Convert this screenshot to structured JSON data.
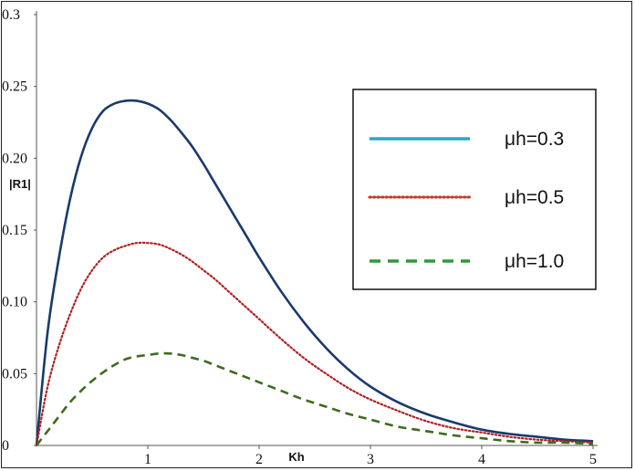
{
  "chart_data": {
    "type": "line",
    "title": "",
    "xlabel": "Kh",
    "ylabel": "|R1|",
    "xlim": [
      0,
      5
    ],
    "ylim": [
      0,
      0.3
    ],
    "x_ticks": [
      1,
      2,
      3,
      4,
      5
    ],
    "y_ticks": [
      0,
      0.05,
      0.1,
      0.15,
      0.2,
      0.25,
      0.3
    ],
    "y_tick_labels": [
      "0",
      "0.05",
      "0.10",
      "0.15",
      "0.20",
      "0.25",
      "0.3"
    ],
    "grid": false,
    "legend_position": "top-right",
    "series": [
      {
        "name": "μh=0.3",
        "color": "#1a3a6b",
        "style": "solid",
        "legend_color": "#2aa8c8",
        "x": [
          0,
          0.1,
          0.2,
          0.3,
          0.4,
          0.5,
          0.6,
          0.7,
          0.8,
          0.9,
          1.0,
          1.1,
          1.2,
          1.3,
          1.4,
          1.5,
          1.6,
          1.7,
          1.8,
          1.9,
          2.0,
          2.2,
          2.4,
          2.6,
          2.8,
          3.0,
          3.25,
          3.5,
          3.75,
          4.0,
          4.25,
          4.5,
          4.75,
          5.0
        ],
        "y": [
          0,
          0.079,
          0.13,
          0.171,
          0.201,
          0.221,
          0.233,
          0.238,
          0.24,
          0.24,
          0.238,
          0.234,
          0.227,
          0.218,
          0.208,
          0.196,
          0.183,
          0.17,
          0.157,
          0.144,
          0.131,
          0.107,
          0.086,
          0.068,
          0.053,
          0.041,
          0.03,
          0.022,
          0.016,
          0.011,
          0.008,
          0.006,
          0.004,
          0.003
        ]
      },
      {
        "name": "μh=0.5",
        "color": "#b02020",
        "style": "dotted",
        "legend_color": "#c0392b",
        "x": [
          0,
          0.1,
          0.2,
          0.3,
          0.4,
          0.5,
          0.6,
          0.7,
          0.8,
          0.9,
          1.0,
          1.1,
          1.2,
          1.3,
          1.4,
          1.5,
          1.6,
          1.7,
          1.8,
          1.9,
          2.0,
          2.2,
          2.4,
          2.6,
          2.8,
          3.0,
          3.25,
          3.5,
          3.75,
          4.0,
          4.25,
          4.5,
          4.75,
          5.0
        ],
        "y": [
          0,
          0.041,
          0.069,
          0.091,
          0.109,
          0.122,
          0.131,
          0.136,
          0.139,
          0.141,
          0.141,
          0.14,
          0.137,
          0.133,
          0.128,
          0.122,
          0.116,
          0.109,
          0.102,
          0.095,
          0.088,
          0.074,
          0.061,
          0.05,
          0.04,
          0.032,
          0.024,
          0.017,
          0.012,
          0.009,
          0.006,
          0.004,
          0.003,
          0.002
        ]
      },
      {
        "name": "μh=1.0",
        "color": "#3d6b1f",
        "style": "dashed",
        "legend_color": "#2e9a3a",
        "x": [
          0,
          0.1,
          0.2,
          0.3,
          0.4,
          0.5,
          0.6,
          0.7,
          0.8,
          0.9,
          1.0,
          1.1,
          1.2,
          1.3,
          1.4,
          1.5,
          1.6,
          1.7,
          1.8,
          1.9,
          2.0,
          2.2,
          2.4,
          2.6,
          2.8,
          3.0,
          3.25,
          3.5,
          3.75,
          4.0,
          4.25,
          4.5,
          4.75,
          5.0
        ],
        "y": [
          0,
          0.01,
          0.02,
          0.03,
          0.038,
          0.045,
          0.051,
          0.056,
          0.06,
          0.062,
          0.063,
          0.064,
          0.064,
          0.063,
          0.061,
          0.059,
          0.056,
          0.053,
          0.05,
          0.047,
          0.044,
          0.038,
          0.032,
          0.027,
          0.022,
          0.018,
          0.013,
          0.01,
          0.007,
          0.005,
          0.003,
          0.002,
          0.002,
          0.001
        ]
      }
    ]
  }
}
